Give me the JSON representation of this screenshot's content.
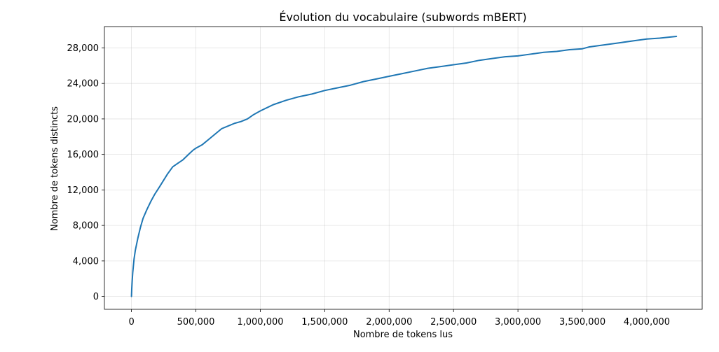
{
  "chart_data": {
    "type": "line",
    "title": "Évolution du vocabulaire (subwords mBERT)",
    "xlabel": "Nombre de tokens lus",
    "ylabel": "Nombre de tokens distincts",
    "xlim": [
      -210000,
      4430000
    ],
    "ylim": [
      -1450,
      30400
    ],
    "x_ticks": [
      0,
      500000,
      1000000,
      1500000,
      2000000,
      2500000,
      3000000,
      3500000,
      4000000
    ],
    "x_tick_labels": [
      "0",
      "500,000",
      "1,000,000",
      "1,500,000",
      "2,000,000",
      "2,500,000",
      "3,000,000",
      "3,500,000",
      "4,000,000"
    ],
    "y_ticks": [
      0,
      4000,
      8000,
      12000,
      16000,
      20000,
      24000,
      28000
    ],
    "y_tick_labels": [
      "0",
      "4,000",
      "8,000",
      "12,000",
      "16,000",
      "20,000",
      "24,000",
      "28,000"
    ],
    "grid": true,
    "line_color": "#1f77b4",
    "series": [
      {
        "x": [
          0,
          2000,
          5000,
          10000,
          20000,
          30000,
          50000,
          70000,
          90000,
          120000,
          150000,
          180000,
          220000,
          250000,
          280000,
          320000,
          350000,
          400000,
          450000,
          480000,
          500000,
          550000,
          600000,
          650000,
          700000,
          750000,
          800000,
          850000,
          900000,
          950000,
          1000000,
          1100000,
          1200000,
          1300000,
          1400000,
          1500000,
          1600000,
          1700000,
          1800000,
          1900000,
          2000000,
          2100000,
          2200000,
          2300000,
          2400000,
          2500000,
          2600000,
          2700000,
          2800000,
          2900000,
          3000000,
          3100000,
          3200000,
          3300000,
          3400000,
          3500000,
          3550000,
          3600000,
          3700000,
          3800000,
          3900000,
          4000000,
          4100000,
          4230000
        ],
        "y": [
          0,
          800,
          1600,
          2700,
          4200,
          5200,
          6600,
          7800,
          8800,
          9800,
          10700,
          11500,
          12400,
          13100,
          13800,
          14600,
          14900,
          15400,
          16100,
          16500,
          16700,
          17100,
          17700,
          18300,
          18900,
          19200,
          19500,
          19700,
          20000,
          20500,
          20900,
          21600,
          22100,
          22500,
          22800,
          23200,
          23500,
          23800,
          24200,
          24500,
          24800,
          25100,
          25400,
          25700,
          25900,
          26100,
          26300,
          26600,
          26800,
          27000,
          27100,
          27300,
          27500,
          27600,
          27800,
          27900,
          28100,
          28200,
          28400,
          28600,
          28800,
          29000,
          29100,
          29300
        ]
      }
    ]
  }
}
